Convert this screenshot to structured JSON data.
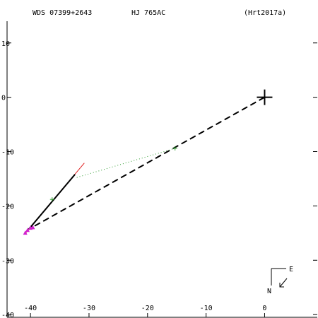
{
  "header": {
    "wds_id": "WDS 07399+2643",
    "discoverer": "HJ  765AC",
    "reference": "(Hrt2017a)"
  },
  "compass": {
    "east_label": "E",
    "north_label": "N"
  },
  "chart_data": {
    "type": "scatter",
    "title": "",
    "xlabel": "",
    "ylabel": "",
    "xlim": [
      -44,
      9
    ],
    "ylim": [
      -40.5,
      14
    ],
    "x_ticks": [
      -40,
      -30,
      -20,
      -10,
      0
    ],
    "y_ticks": [
      10,
      0,
      -10,
      -20,
      -30,
      -40
    ],
    "grid": false,
    "primary": {
      "x": 0,
      "y": 0
    },
    "orbit_curve": [
      [
        -40.3,
        -24.3
      ],
      [
        -32.4,
        -14.2
      ]
    ],
    "red_line": [
      [
        -41.0,
        -25.2
      ],
      [
        -30.8,
        -12.1
      ]
    ],
    "dashed_line": [
      [
        0,
        0
      ],
      [
        -40.3,
        -24.3
      ]
    ],
    "dotted_link": [
      [
        -15.3,
        -9.4
      ],
      [
        -32.2,
        -14.8
      ]
    ],
    "observations_green": [
      {
        "x": -15.3,
        "y": -9.4
      },
      {
        "x": -36.3,
        "y": -18.8
      }
    ],
    "observations_magenta": [
      {
        "x": -40.0,
        "y": -24.0
      },
      {
        "x": -39.6,
        "y": -23.9
      },
      {
        "x": -40.5,
        "y": -24.4
      },
      {
        "x": -40.9,
        "y": -24.9
      }
    ]
  }
}
